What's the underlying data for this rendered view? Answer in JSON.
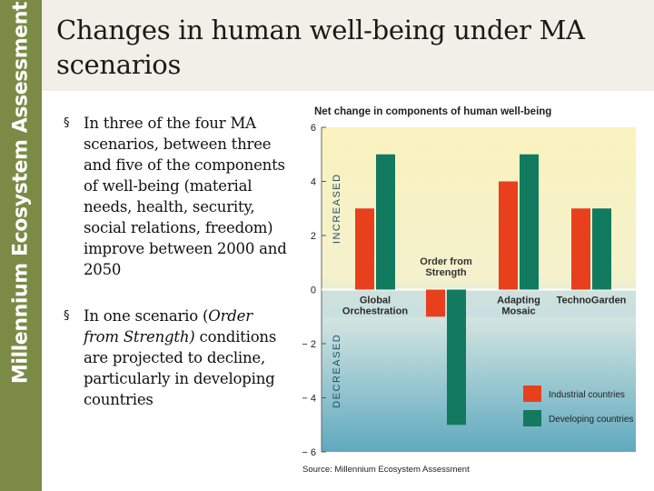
{
  "sidebar": {
    "org_name": "Millennium Ecosystem Assessment"
  },
  "slide": {
    "title": "Changes in human well-being under MA scenarios"
  },
  "bullets": [
    {
      "marker": "§",
      "text": "In three of the four MA scenarios, between three and five of the components of well-being (material needs, health, security, social relations, freedom) improve between 2000 and 2050"
    },
    {
      "marker": "§",
      "text_before": "In one scenario (",
      "text_italic": "Order from Strength)",
      "text_after": " conditions are projected to decline, particularly in developing countries"
    }
  ],
  "chart_data": {
    "type": "bar",
    "title": "Net change in components of human well-being",
    "categories": [
      "Global\nOrchestration",
      "Order from\nStrength",
      "Adapting\nMosaic",
      "TechnoGarden"
    ],
    "series": [
      {
        "name": "Industrial countries",
        "color": "#e8401c",
        "values": [
          3,
          -1,
          4,
          3
        ]
      },
      {
        "name": "Developing countries",
        "color": "#127a5e",
        "values": [
          5,
          -5,
          5,
          3
        ]
      }
    ],
    "ylim": [
      -6,
      6
    ],
    "yticks": [
      6,
      4,
      2,
      0,
      -2,
      -4,
      -6
    ],
    "ytick_labels": [
      "6",
      "4",
      "2",
      "0",
      "− 2",
      "− 4",
      "− 6"
    ],
    "ylabel_positive": "INCREASED",
    "ylabel_negative": "DECREASED",
    "legend_position": "bottom-right",
    "source": "Source: Millennium Ecosystem Assessment",
    "colors": {
      "top_gradient": "#faf2bf",
      "bottom_gradient": "#5fa9bf",
      "zero_band": "#c5dde2"
    }
  }
}
